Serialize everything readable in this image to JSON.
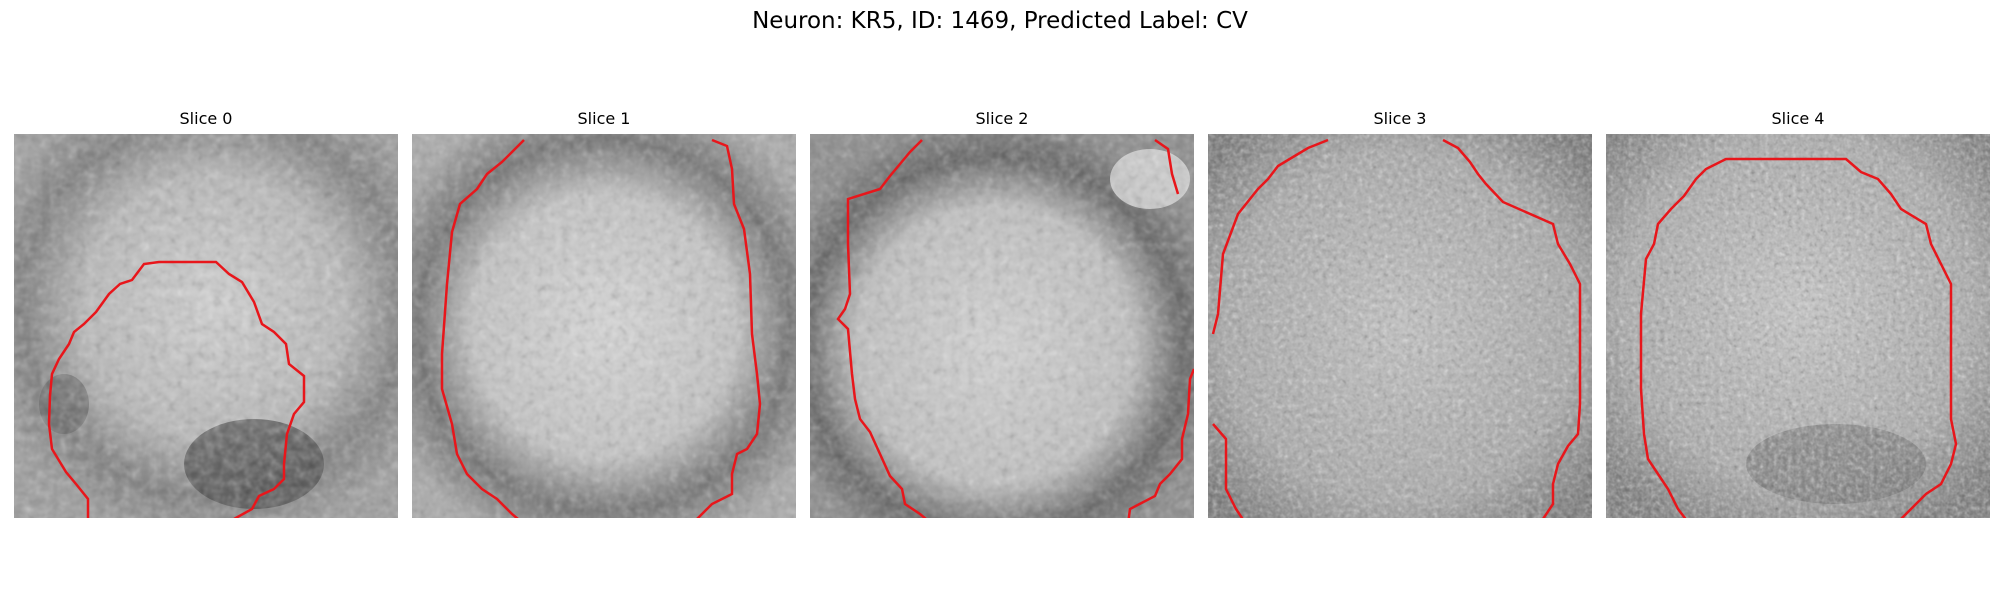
{
  "figure": {
    "title": "Neuron: KR5, ID: 1469, Predicted Label: CV"
  },
  "slices": [
    {
      "label": "Slice 0"
    },
    {
      "label": "Slice 1"
    },
    {
      "label": "Slice 2"
    },
    {
      "label": "Slice 3"
    },
    {
      "label": "Slice 4"
    }
  ],
  "colors": {
    "contour": "#e8161b",
    "background": "#ffffff"
  }
}
